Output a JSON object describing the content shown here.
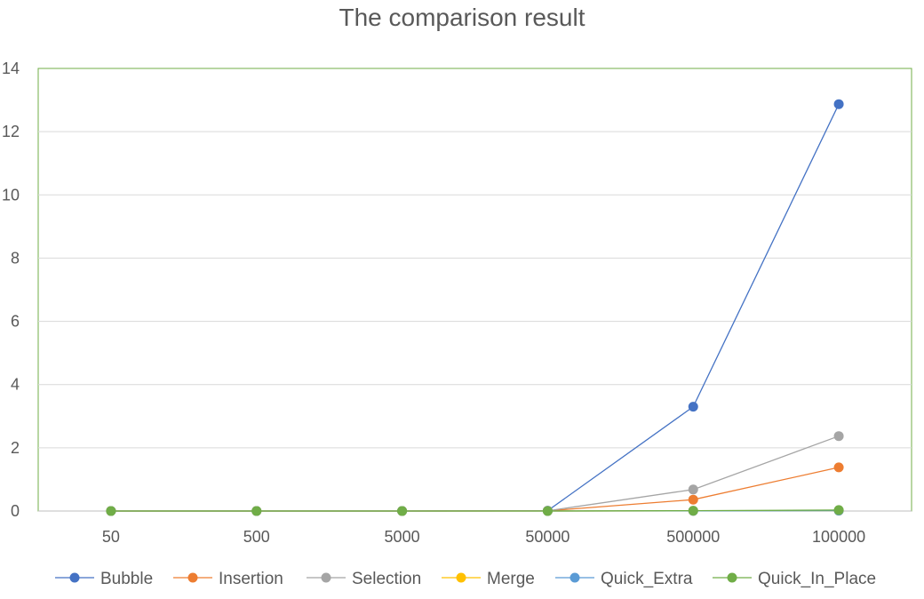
{
  "chart_data": {
    "type": "line",
    "title": "The comparison result",
    "xlabel": "",
    "ylabel": "",
    "categories": [
      "50",
      "500",
      "5000",
      "50000",
      "500000",
      "100000"
    ],
    "ylim": [
      0,
      14
    ],
    "yticks": [
      "0",
      "2",
      "4",
      "6",
      "8",
      "10",
      "12",
      "14"
    ],
    "grid": true,
    "legend_position": "bottom",
    "series": [
      {
        "name": "Bubble",
        "color": "#4472C4",
        "values": [
          0,
          0,
          0,
          0.01,
          3.3,
          12.87
        ]
      },
      {
        "name": "Insertion",
        "color": "#ED7D31",
        "values": [
          0,
          0,
          0,
          0.005,
          0.36,
          1.38
        ]
      },
      {
        "name": "Selection",
        "color": "#A5A5A5",
        "values": [
          0,
          0,
          0,
          0.007,
          0.68,
          2.37
        ]
      },
      {
        "name": "Merge",
        "color": "#FFC000",
        "values": [
          0,
          0,
          0,
          0,
          0.005,
          0.01
        ]
      },
      {
        "name": "Quick_Extra",
        "color": "#5B9BD5",
        "values": [
          0,
          0,
          0,
          0,
          0.005,
          0.01
        ]
      },
      {
        "name": "Quick_In_Place",
        "color": "#70AD47",
        "values": [
          0,
          0,
          0,
          0,
          0.01,
          0.03
        ]
      }
    ]
  }
}
